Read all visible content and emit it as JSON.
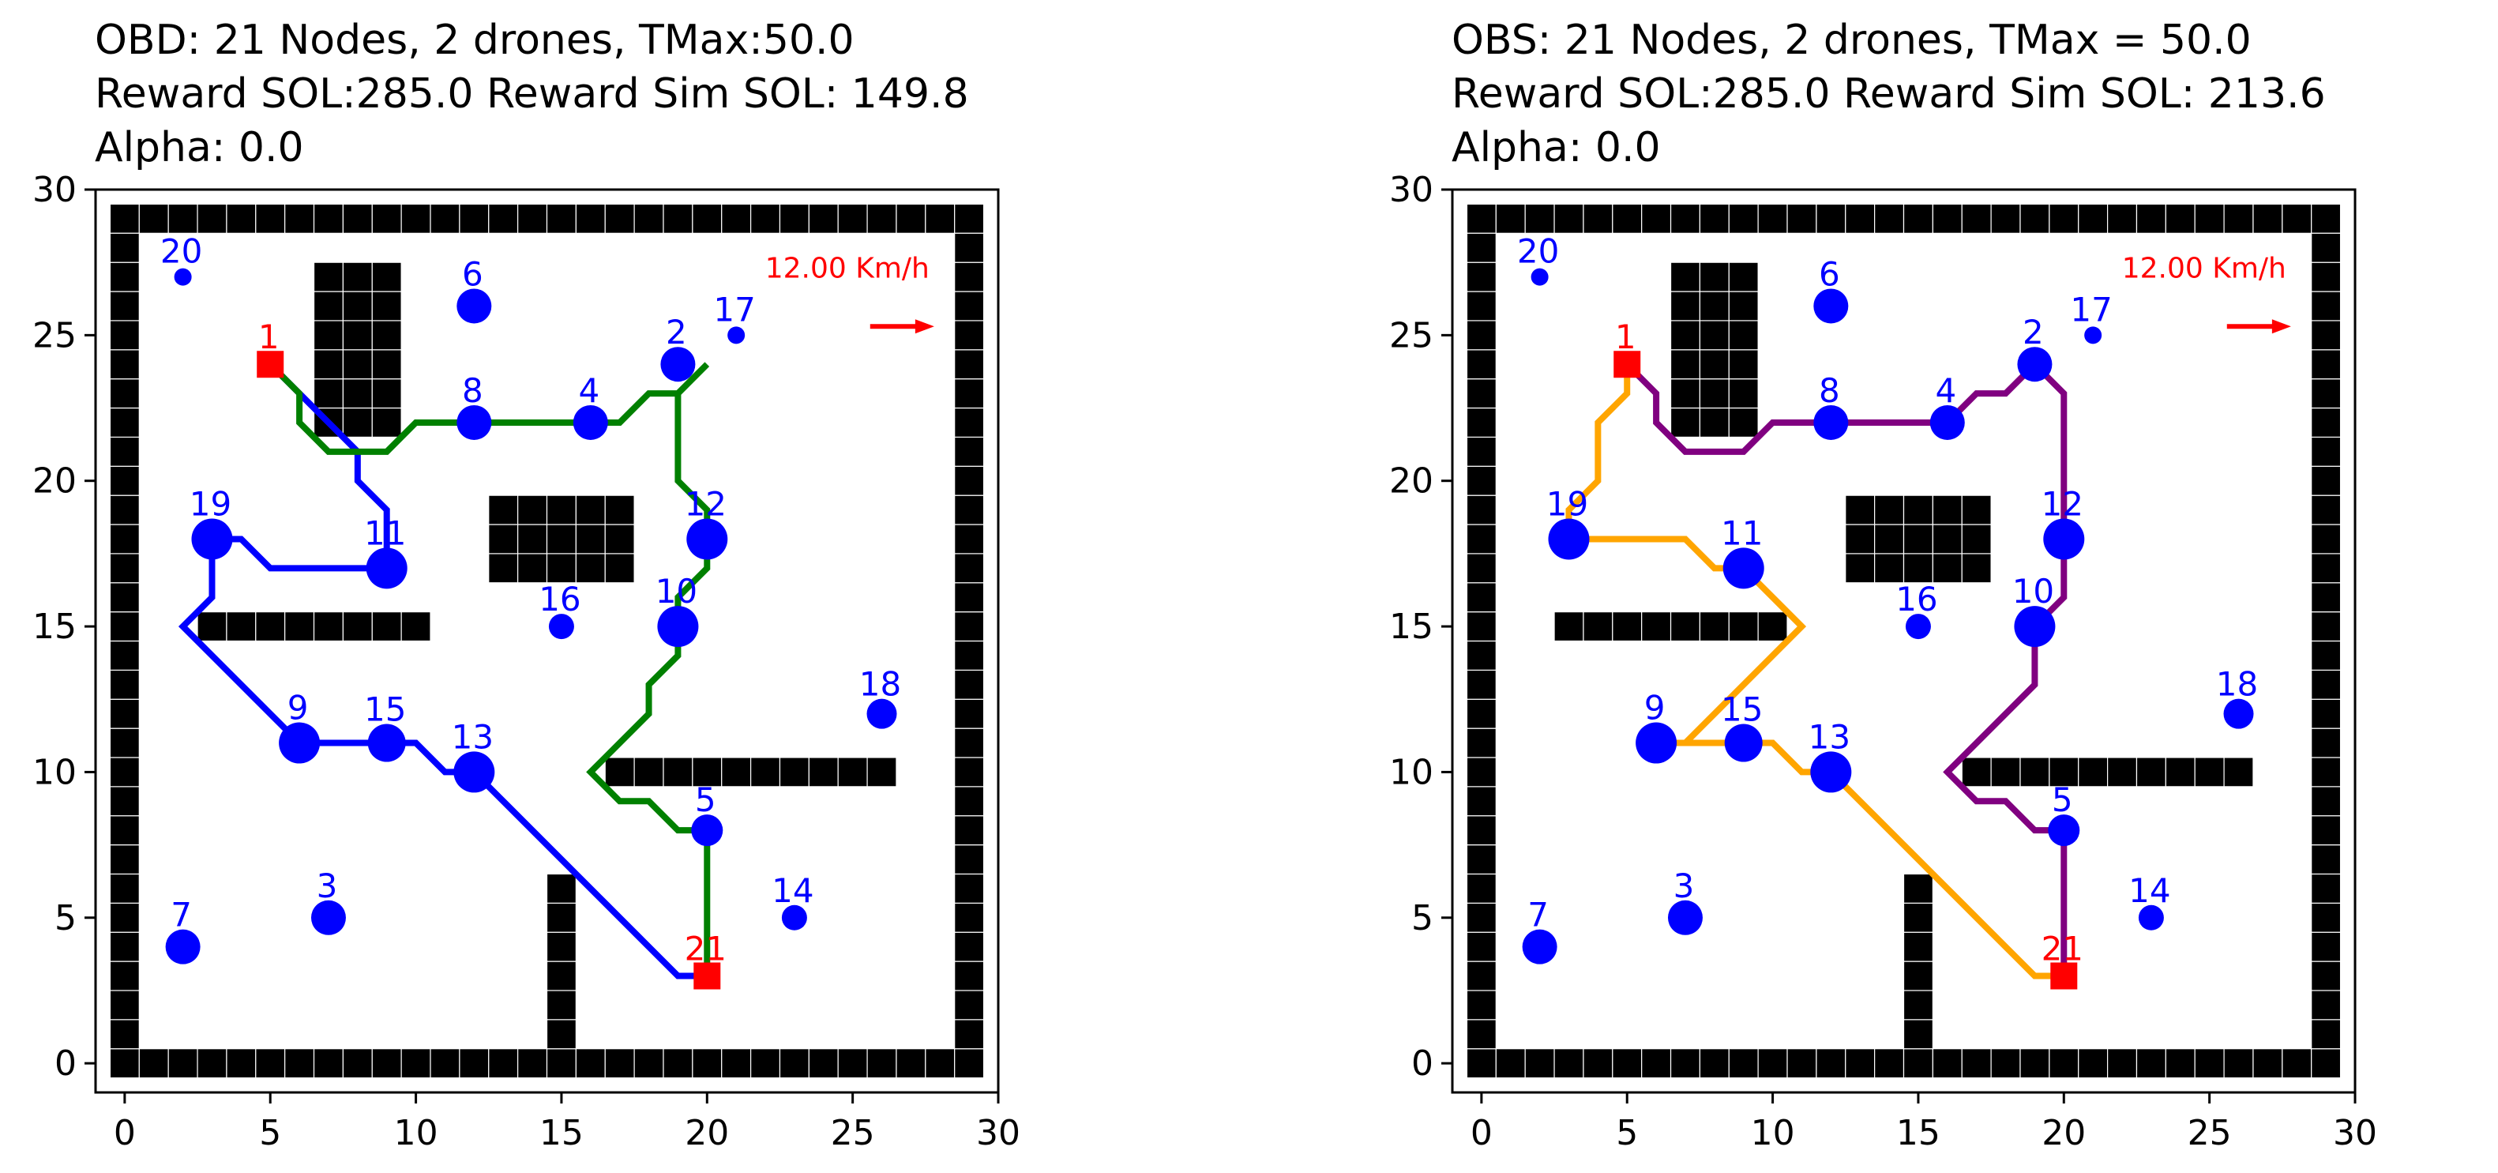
{
  "chart_data": [
    {
      "type": "scatter",
      "title_lines": [
        "OBD: 21 Nodes, 2 drones, TMax:50.0",
        "Reward SOL:285.0 Reward Sim SOL: 149.8",
        "Alpha: 0.0"
      ],
      "xlim": [
        -1,
        30
      ],
      "ylim": [
        -1,
        30
      ],
      "xticks": [
        0,
        5,
        10,
        15,
        20,
        25,
        30
      ],
      "yticks": [
        0,
        5,
        10,
        15,
        20,
        25,
        30
      ],
      "wind_label": "12.00 Km/h",
      "wind_arrow": {
        "from": [
          25.6,
          25.3
        ],
        "to": [
          27.8,
          25.3
        ],
        "color": "#ff0000"
      },
      "routes": [
        {
          "color": "#0000ff",
          "points": [
            [
              5,
              24
            ],
            [
              6,
              23
            ],
            [
              7,
              22
            ],
            [
              8,
              21
            ],
            [
              8,
              20
            ],
            [
              9,
              19
            ],
            [
              9,
              17
            ],
            [
              8,
              17
            ],
            [
              7,
              17
            ],
            [
              6,
              17
            ],
            [
              5,
              17
            ],
            [
              4,
              18
            ],
            [
              3,
              18
            ],
            [
              3,
              17
            ],
            [
              3,
              16
            ],
            [
              2,
              15
            ],
            [
              3,
              14
            ],
            [
              4,
              13
            ],
            [
              5,
              12
            ],
            [
              6,
              11
            ],
            [
              7,
              11
            ],
            [
              8,
              11
            ],
            [
              9,
              11
            ],
            [
              10,
              11
            ],
            [
              11,
              10
            ],
            [
              12,
              10
            ],
            [
              13,
              9
            ],
            [
              14,
              8
            ],
            [
              15,
              7
            ],
            [
              16,
              6
            ],
            [
              17,
              5
            ],
            [
              18,
              4
            ],
            [
              19,
              3
            ],
            [
              20,
              3
            ]
          ]
        },
        {
          "color": "#008000",
          "points": [
            [
              5,
              24
            ],
            [
              6,
              23
            ],
            [
              6,
              22
            ],
            [
              7,
              21
            ],
            [
              8,
              21
            ],
            [
              9,
              21
            ],
            [
              10,
              22
            ],
            [
              11,
              22
            ],
            [
              12,
              22
            ],
            [
              13,
              22
            ],
            [
              14,
              22
            ],
            [
              15,
              22
            ],
            [
              16,
              22
            ],
            [
              17,
              22
            ],
            [
              18,
              23
            ],
            [
              19,
              23
            ],
            [
              20,
              24
            ],
            [
              19,
              23
            ],
            [
              19,
              22
            ],
            [
              19,
              21
            ],
            [
              19,
              20
            ],
            [
              20,
              19
            ],
            [
              20,
              18
            ],
            [
              20,
              17
            ],
            [
              19,
              16
            ],
            [
              19,
              15
            ],
            [
              19,
              14
            ],
            [
              18,
              13
            ],
            [
              18,
              12
            ],
            [
              17,
              11
            ],
            [
              16,
              10
            ],
            [
              17,
              9
            ],
            [
              18,
              9
            ],
            [
              19,
              8
            ],
            [
              20,
              8
            ],
            [
              20,
              7
            ],
            [
              20,
              6
            ],
            [
              20,
              5
            ],
            [
              20,
              4
            ],
            [
              20,
              3
            ]
          ]
        }
      ],
      "nodes": [
        {
          "id": "1",
          "x": 5,
          "y": 24,
          "size": 0,
          "depot": true
        },
        {
          "id": "2",
          "x": 19,
          "y": 24,
          "size": 22
        },
        {
          "id": "3",
          "x": 7,
          "y": 5,
          "size": 22
        },
        {
          "id": "4",
          "x": 16,
          "y": 22,
          "size": 22
        },
        {
          "id": "5",
          "x": 20,
          "y": 8,
          "size": 20
        },
        {
          "id": "6",
          "x": 12,
          "y": 26,
          "size": 22
        },
        {
          "id": "7",
          "x": 2,
          "y": 4,
          "size": 22
        },
        {
          "id": "8",
          "x": 12,
          "y": 22,
          "size": 22
        },
        {
          "id": "9",
          "x": 6,
          "y": 11,
          "size": 26
        },
        {
          "id": "10",
          "x": 19,
          "y": 15,
          "size": 26
        },
        {
          "id": "11",
          "x": 9,
          "y": 17,
          "size": 26
        },
        {
          "id": "12",
          "x": 20,
          "y": 18,
          "size": 26
        },
        {
          "id": "13",
          "x": 12,
          "y": 10,
          "size": 26
        },
        {
          "id": "14",
          "x": 23,
          "y": 5,
          "size": 16
        },
        {
          "id": "15",
          "x": 9,
          "y": 11,
          "size": 24
        },
        {
          "id": "16",
          "x": 15,
          "y": 15,
          "size": 16
        },
        {
          "id": "17",
          "x": 21,
          "y": 25,
          "size": 11
        },
        {
          "id": "18",
          "x": 26,
          "y": 12,
          "size": 19
        },
        {
          "id": "19",
          "x": 3,
          "y": 18,
          "size": 26
        },
        {
          "id": "20",
          "x": 2,
          "y": 27,
          "size": 11
        },
        {
          "id": "21",
          "x": 20,
          "y": 3,
          "size": 0,
          "depot": true
        }
      ],
      "depot_color": "#ff0000",
      "node_color": "#0000ff"
    },
    {
      "type": "scatter",
      "title_lines": [
        "OBS: 21 Nodes, 2 drones, TMax = 50.0",
        "Reward SOL:285.0 Reward Sim SOL: 213.6",
        "Alpha: 0.0"
      ],
      "xlim": [
        -1,
        30
      ],
      "ylim": [
        -1,
        30
      ],
      "xticks": [
        0,
        5,
        10,
        15,
        20,
        25,
        30
      ],
      "yticks": [
        0,
        5,
        10,
        15,
        20,
        25,
        30
      ],
      "wind_label": "12.00 Km/h",
      "wind_arrow": {
        "from": [
          25.6,
          25.3
        ],
        "to": [
          27.8,
          25.3
        ],
        "color": "#ff0000"
      },
      "routes": [
        {
          "color": "#ffa500",
          "points": [
            [
              5,
              24
            ],
            [
              5,
              23
            ],
            [
              4,
              22
            ],
            [
              4,
              21
            ],
            [
              4,
              20
            ],
            [
              3,
              19
            ],
            [
              3,
              18
            ],
            [
              4,
              18
            ],
            [
              5,
              18
            ],
            [
              6,
              18
            ],
            [
              7,
              18
            ],
            [
              8,
              17
            ],
            [
              9,
              17
            ],
            [
              10,
              16
            ],
            [
              11,
              15
            ],
            [
              10,
              14
            ],
            [
              9,
              13
            ],
            [
              8,
              12
            ],
            [
              7,
              11
            ],
            [
              6,
              11
            ],
            [
              7,
              11
            ],
            [
              8,
              11
            ],
            [
              9,
              11
            ],
            [
              10,
              11
            ],
            [
              11,
              10
            ],
            [
              12,
              10
            ],
            [
              13,
              9
            ],
            [
              14,
              8
            ],
            [
              15,
              7
            ],
            [
              16,
              6
            ],
            [
              17,
              5
            ],
            [
              18,
              4
            ],
            [
              19,
              3
            ],
            [
              20,
              3
            ]
          ]
        },
        {
          "color": "#800080",
          "points": [
            [
              5,
              24
            ],
            [
              6,
              23
            ],
            [
              6,
              22
            ],
            [
              7,
              21
            ],
            [
              8,
              21
            ],
            [
              9,
              21
            ],
            [
              10,
              22
            ],
            [
              11,
              22
            ],
            [
              12,
              22
            ],
            [
              13,
              22
            ],
            [
              14,
              22
            ],
            [
              15,
              22
            ],
            [
              16,
              22
            ],
            [
              17,
              23
            ],
            [
              18,
              23
            ],
            [
              19,
              24
            ],
            [
              20,
              23
            ],
            [
              20,
              22
            ],
            [
              20,
              21
            ],
            [
              20,
              20
            ],
            [
              20,
              19
            ],
            [
              20,
              18
            ],
            [
              20,
              17
            ],
            [
              20,
              16
            ],
            [
              19,
              15
            ],
            [
              19,
              14
            ],
            [
              19,
              13
            ],
            [
              18,
              12
            ],
            [
              17,
              11
            ],
            [
              16,
              10
            ],
            [
              17,
              9
            ],
            [
              18,
              9
            ],
            [
              19,
              8
            ],
            [
              20,
              8
            ],
            [
              20,
              7
            ],
            [
              20,
              6
            ],
            [
              20,
              5
            ],
            [
              20,
              4
            ],
            [
              20,
              3
            ]
          ]
        }
      ],
      "nodes": [
        {
          "id": "1",
          "x": 5,
          "y": 24,
          "size": 0,
          "depot": true
        },
        {
          "id": "2",
          "x": 19,
          "y": 24,
          "size": 22
        },
        {
          "id": "3",
          "x": 7,
          "y": 5,
          "size": 22
        },
        {
          "id": "4",
          "x": 16,
          "y": 22,
          "size": 22
        },
        {
          "id": "5",
          "x": 20,
          "y": 8,
          "size": 20
        },
        {
          "id": "6",
          "x": 12,
          "y": 26,
          "size": 22
        },
        {
          "id": "7",
          "x": 2,
          "y": 4,
          "size": 22
        },
        {
          "id": "8",
          "x": 12,
          "y": 22,
          "size": 22
        },
        {
          "id": "9",
          "x": 6,
          "y": 11,
          "size": 26
        },
        {
          "id": "10",
          "x": 19,
          "y": 15,
          "size": 26
        },
        {
          "id": "11",
          "x": 9,
          "y": 17,
          "size": 26
        },
        {
          "id": "12",
          "x": 20,
          "y": 18,
          "size": 26
        },
        {
          "id": "13",
          "x": 12,
          "y": 10,
          "size": 26
        },
        {
          "id": "14",
          "x": 23,
          "y": 5,
          "size": 16
        },
        {
          "id": "15",
          "x": 9,
          "y": 11,
          "size": 24
        },
        {
          "id": "16",
          "x": 15,
          "y": 15,
          "size": 16
        },
        {
          "id": "17",
          "x": 21,
          "y": 25,
          "size": 11
        },
        {
          "id": "18",
          "x": 26,
          "y": 12,
          "size": 19
        },
        {
          "id": "19",
          "x": 3,
          "y": 18,
          "size": 26
        },
        {
          "id": "20",
          "x": 2,
          "y": 27,
          "size": 11
        },
        {
          "id": "21",
          "x": 20,
          "y": 3,
          "size": 0,
          "depot": true
        }
      ],
      "depot_color": "#ff0000",
      "node_color": "#0000ff"
    }
  ],
  "obstacles": {
    "border": {
      "x_range": [
        0,
        29
      ],
      "y_range": [
        0,
        29
      ]
    },
    "blocks": [
      {
        "x0": 7,
        "x1": 9,
        "y0": 22,
        "y1": 27
      },
      {
        "x0": 13,
        "x1": 17,
        "y0": 17,
        "y1": 19
      },
      {
        "x0": 3,
        "x1": 10,
        "y0": 15,
        "y1": 15
      },
      {
        "x0": 17,
        "x1": 26,
        "y0": 10,
        "y1": 10
      },
      {
        "x0": 15,
        "x1": 15,
        "y0": 0,
        "y1": 6
      }
    ]
  }
}
